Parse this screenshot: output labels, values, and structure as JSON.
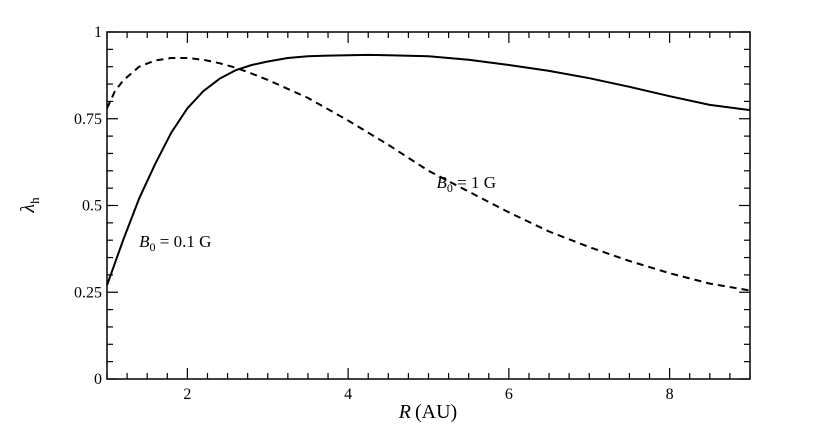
{
  "chart_data": {
    "type": "line",
    "xlabel": "R (AU)",
    "xlabel_parts": {
      "symbol": "R",
      "unit": "(AU)"
    },
    "ylabel": "λh",
    "ylabel_parts": {
      "symbol": "λ",
      "sub": "h"
    },
    "xlim": [
      1,
      9
    ],
    "ylim": [
      0,
      1
    ],
    "x_ticks": [
      2,
      4,
      6,
      8
    ],
    "x_tick_labels": [
      "2",
      "4",
      "6",
      "8"
    ],
    "y_ticks": [
      0,
      0.25,
      0.5,
      0.75,
      1
    ],
    "y_tick_labels": [
      "0",
      "0.25",
      "0.5",
      "0.75",
      "1"
    ],
    "x_minor_step": 0.25,
    "y_minor_step": 0.05,
    "grid": false,
    "series": [
      {
        "style": "solid",
        "color": "#000000",
        "x": [
          1.0,
          1.2,
          1.4,
          1.6,
          1.8,
          2.0,
          2.2,
          2.4,
          2.6,
          2.8,
          3.0,
          3.25,
          3.5,
          3.75,
          4.0,
          4.25,
          4.5,
          5.0,
          5.5,
          6.0,
          6.5,
          7.0,
          7.5,
          8.0,
          8.5,
          9.0
        ],
        "y": [
          0.27,
          0.4,
          0.52,
          0.62,
          0.71,
          0.78,
          0.83,
          0.865,
          0.89,
          0.905,
          0.915,
          0.925,
          0.93,
          0.932,
          0.933,
          0.934,
          0.933,
          0.93,
          0.92,
          0.905,
          0.888,
          0.867,
          0.842,
          0.815,
          0.79,
          0.775
        ]
      },
      {
        "style": "dashed",
        "color": "#000000",
        "x": [
          1.0,
          1.1,
          1.2,
          1.4,
          1.6,
          1.8,
          2.0,
          2.2,
          2.4,
          2.6,
          2.8,
          3.0,
          3.5,
          4.0,
          4.5,
          5.0,
          5.5,
          6.0,
          6.5,
          7.0,
          7.5,
          8.0,
          8.5,
          9.0
        ],
        "y": [
          0.78,
          0.83,
          0.86,
          0.9,
          0.918,
          0.925,
          0.925,
          0.92,
          0.91,
          0.897,
          0.88,
          0.862,
          0.81,
          0.745,
          0.675,
          0.6,
          0.54,
          0.48,
          0.425,
          0.38,
          0.34,
          0.305,
          0.275,
          0.255
        ]
      }
    ],
    "annotations": [
      {
        "symbol": "B",
        "sub": "0",
        "value": " = 0.1 G",
        "x": 1.4,
        "y": 0.38
      },
      {
        "symbol": "B",
        "sub": "0",
        "value": " = 1 G",
        "x": 5.1,
        "y": 0.55
      }
    ]
  }
}
